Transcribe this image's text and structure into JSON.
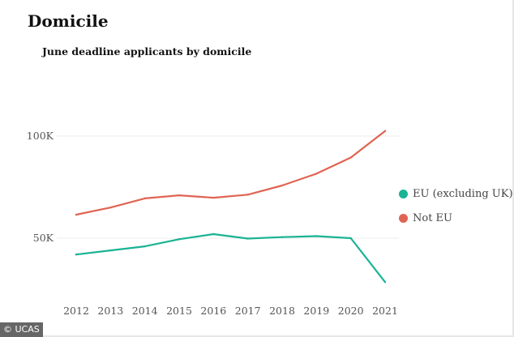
{
  "header": {
    "title": "Domicile",
    "subtitle": "June deadline applicants by domicile"
  },
  "credit": "© UCAS",
  "chart_data": {
    "type": "line",
    "title": "June deadline applicants by domicile",
    "xlabel": "",
    "ylabel": "",
    "x": [
      "2012",
      "2013",
      "2014",
      "2015",
      "2016",
      "2017",
      "2018",
      "2019",
      "2020",
      "2021"
    ],
    "ylim": [
      20000,
      105000
    ],
    "yticks": [
      {
        "value": 50000,
        "label": "50K"
      },
      {
        "value": 100000,
        "label": "100K"
      }
    ],
    "grid": true,
    "legend_position": "right",
    "series": [
      {
        "name": "EU (excluding UK)",
        "color": "#1ab394",
        "values": [
          42000,
          44000,
          46000,
          49500,
          52000,
          49800,
          50500,
          51000,
          50000,
          28500
        ]
      },
      {
        "name": "Not EU",
        "color": "#e06453",
        "values": [
          61500,
          65000,
          69500,
          71000,
          69800,
          71300,
          75800,
          81600,
          89500,
          102500
        ]
      }
    ]
  }
}
